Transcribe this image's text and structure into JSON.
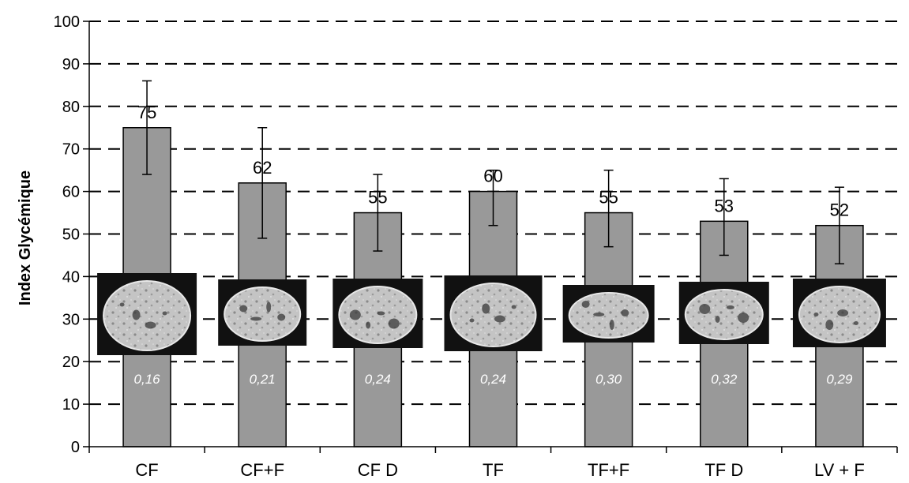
{
  "chart_data": {
    "type": "bar",
    "ylabel": "Index Glycémique",
    "xlabel": "",
    "ylim": [
      0,
      100
    ],
    "yticks": [
      "0",
      "10",
      "20",
      "30",
      "40",
      "50",
      "60",
      "70",
      "80",
      "90",
      "100"
    ],
    "grid": "horizontal dashed",
    "categories": [
      "CF",
      "CF+F",
      "CF D",
      "TF",
      "TF+F",
      "TF D",
      "LV + F"
    ],
    "values": [
      75,
      62,
      55,
      60,
      55,
      53,
      52
    ],
    "value_labels": [
      "75",
      "62",
      "55",
      "60",
      "55",
      "53",
      "52"
    ],
    "error_low": [
      64,
      49,
      46,
      52,
      47,
      45,
      43
    ],
    "error_high": [
      86,
      75,
      64,
      65,
      65,
      63,
      61
    ],
    "inner_labels": [
      "0,16",
      "0,21",
      "0,24",
      "0,24",
      "0,30",
      "0,32",
      "0,29"
    ],
    "bread_images": [
      "bread-slice-cf",
      "bread-slice-cf-f",
      "bread-slice-cf-d",
      "bread-slice-tf",
      "bread-slice-tf-f",
      "bread-slice-tf-d",
      "bread-slice-lv-f"
    ],
    "colors": {
      "bar": "#999999",
      "bar_stroke": "#000000",
      "photo_bg": "#111111",
      "inner_label": "#ffffff"
    }
  }
}
